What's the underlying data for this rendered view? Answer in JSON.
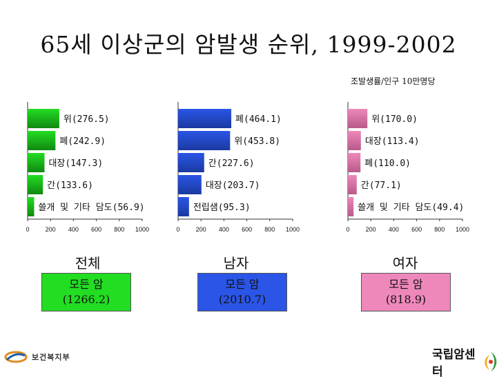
{
  "title": "65세 이상군의 암발생 순위, 1999-2002",
  "unit_note": "조발생률/인구 10만명당",
  "colors": {
    "total": "#22dd22",
    "male": "#2a55e6",
    "female": "#ee88bb"
  },
  "chart_data": [
    {
      "type": "bar",
      "orientation": "horizontal",
      "name": "total",
      "group_label": "전체",
      "categories": [
        "위(276.5)",
        "폐(242.9)",
        "대장(147.3)",
        "간(133.6)",
        "쓸개 및 기타 담도(56.9)"
      ],
      "values": [
        276.5,
        242.9,
        147.3,
        133.6,
        56.9
      ],
      "xlim": [
        0,
        1000
      ],
      "xticks": [
        "0",
        "200",
        "400",
        "600",
        "800",
        "1000"
      ],
      "all_cancer_label": "모든 암",
      "all_cancer_value": "(1266.2)"
    },
    {
      "type": "bar",
      "orientation": "horizontal",
      "name": "male",
      "group_label": "남자",
      "categories": [
        "폐(464.1)",
        "위(453.8)",
        "간(227.6)",
        "대장(203.7)",
        "전립샘(95.3)"
      ],
      "values": [
        464.1,
        453.8,
        227.6,
        203.7,
        95.3
      ],
      "xlim": [
        0,
        1000
      ],
      "xticks": [
        "0",
        "200",
        "400",
        "600",
        "800",
        "1000"
      ],
      "all_cancer_label": "모든 암",
      "all_cancer_value": "(2010.7)"
    },
    {
      "type": "bar",
      "orientation": "horizontal",
      "name": "female",
      "group_label": "여자",
      "categories": [
        "위(170.0)",
        "대장(113.4)",
        "폐(110.0)",
        "간(77.1)",
        "쓸개 및 기타 담도(49.4)"
      ],
      "values": [
        170.0,
        113.4,
        110.0,
        77.1,
        49.4
      ],
      "xlim": [
        0,
        1000
      ],
      "xticks": [
        "0",
        "200",
        "400",
        "600",
        "800",
        "1000"
      ],
      "all_cancer_label": "모든 암",
      "all_cancer_value": "(818.9)"
    }
  ],
  "footer": {
    "left_logo": "보건복지부",
    "right_logo": "국립암센터"
  }
}
